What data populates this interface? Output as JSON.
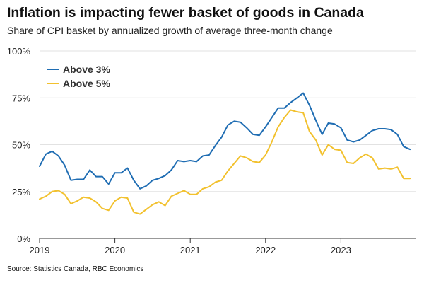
{
  "chart_data": {
    "type": "line",
    "title": "Inflation is impacting fewer basket of goods in Canada",
    "subtitle": "Share of CPI basket by annualized growth of average three-month change",
    "source": "Source: Statistics Canada, RBC Economics",
    "xlabel": "",
    "ylabel": "",
    "ylim": [
      0,
      100
    ],
    "y_ticks": [
      {
        "value": 0,
        "label": "0%"
      },
      {
        "value": 25,
        "label": "25%"
      },
      {
        "value": 50,
        "label": "50%"
      },
      {
        "value": 75,
        "label": "75%"
      },
      {
        "value": 100,
        "label": "100%"
      }
    ],
    "x_ticks": [
      {
        "index": 0,
        "label": "2019"
      },
      {
        "index": 12,
        "label": "2020"
      },
      {
        "index": 24,
        "label": "2021"
      },
      {
        "index": 36,
        "label": "2022"
      },
      {
        "index": 48,
        "label": "2023"
      }
    ],
    "x_count": 60,
    "grid": true,
    "legend_position": "top-left",
    "series": [
      {
        "name": "Above 3%",
        "color": "#1f6db3",
        "values": [
          38.5,
          45,
          46.5,
          44,
          39,
          31,
          31.5,
          31.5,
          36.5,
          33,
          33,
          29,
          35,
          35,
          37.5,
          31,
          26.5,
          28,
          31,
          32,
          33.5,
          36.5,
          41.5,
          41,
          41.5,
          41,
          44,
          44.5,
          49.5,
          54,
          60.5,
          62.5,
          62,
          59,
          55.5,
          55,
          59.5,
          64.5,
          69.5,
          69.5,
          72.5,
          75,
          77.5,
          71,
          63,
          55.5,
          61.5,
          61,
          59,
          52.5,
          51.5,
          52.5,
          55,
          57.5,
          58.5,
          58.5,
          58,
          55.5,
          49,
          47.5
        ]
      },
      {
        "name": "Above 5%",
        "color": "#f2c12e",
        "values": [
          21,
          22.5,
          25,
          25.5,
          23.5,
          18.5,
          20,
          22,
          21.5,
          19.5,
          16,
          15,
          20,
          22,
          21.5,
          14,
          13,
          15.5,
          18,
          19.5,
          17.5,
          22.5,
          24,
          25.5,
          23.5,
          23.5,
          26.5,
          27.5,
          30,
          31,
          36,
          40,
          44,
          43,
          41,
          40.5,
          44.5,
          51.5,
          59.5,
          64.5,
          68.5,
          67.5,
          67,
          57,
          52.5,
          44.5,
          50,
          47.5,
          47,
          40.5,
          40,
          43,
          45,
          43,
          37,
          37.5,
          37,
          38,
          32,
          32
        ]
      }
    ]
  }
}
